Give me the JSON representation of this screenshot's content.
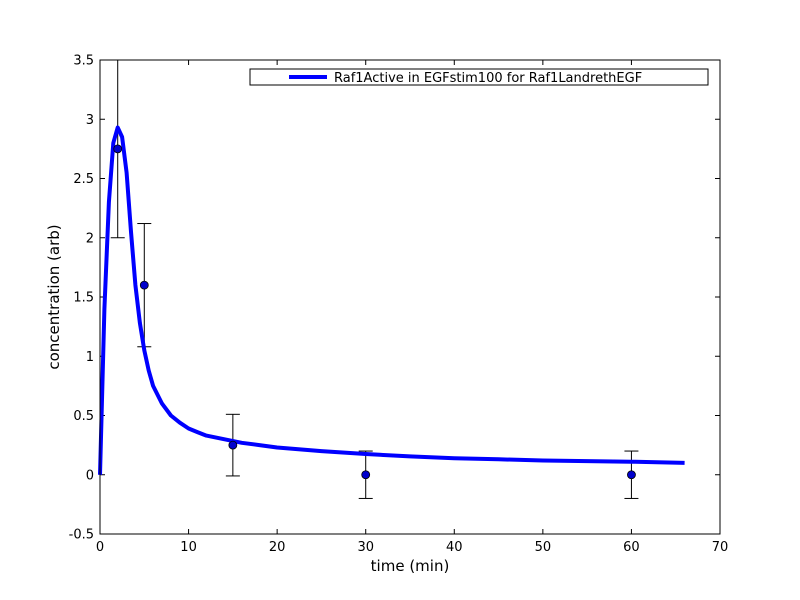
{
  "chart_data": {
    "type": "line",
    "xlabel": "time (min)",
    "ylabel": "concentration (arb)",
    "xlim": [
      0,
      70
    ],
    "ylim": [
      -0.5,
      3.5
    ],
    "x_ticks": [
      "0",
      "10",
      "20",
      "30",
      "40",
      "50",
      "60",
      "70"
    ],
    "y_ticks": [
      "-0.5",
      "0",
      "0.5",
      "1",
      "1.5",
      "2",
      "2.5",
      "3",
      "3.5"
    ],
    "grid": false,
    "legend_position": "top-right",
    "series": [
      {
        "name": "Raf1Active in EGFstim100 for Raf1LandrethEGF",
        "color": "#0000ff",
        "x": [
          0,
          0.5,
          1,
          1.5,
          2,
          2.5,
          3,
          3.5,
          4,
          4.5,
          5,
          5.5,
          6,
          7,
          8,
          9,
          10,
          11,
          12,
          14,
          16,
          18,
          20,
          25,
          30,
          35,
          40,
          45,
          50,
          55,
          60,
          66
        ],
        "y": [
          0,
          1.4,
          2.3,
          2.8,
          2.93,
          2.85,
          2.55,
          2.05,
          1.6,
          1.28,
          1.05,
          0.88,
          0.75,
          0.6,
          0.5,
          0.44,
          0.39,
          0.36,
          0.33,
          0.3,
          0.27,
          0.25,
          0.23,
          0.2,
          0.175,
          0.155,
          0.14,
          0.13,
          0.12,
          0.115,
          0.11,
          0.1
        ]
      }
    ],
    "experimental": {
      "x": [
        2,
        5,
        15,
        30,
        60
      ],
      "y": [
        2.75,
        1.6,
        0.25,
        0,
        0
      ],
      "error": [
        0.75,
        0.52,
        0.26,
        0.2,
        0.2
      ],
      "marker_color": "#0000cc"
    }
  }
}
